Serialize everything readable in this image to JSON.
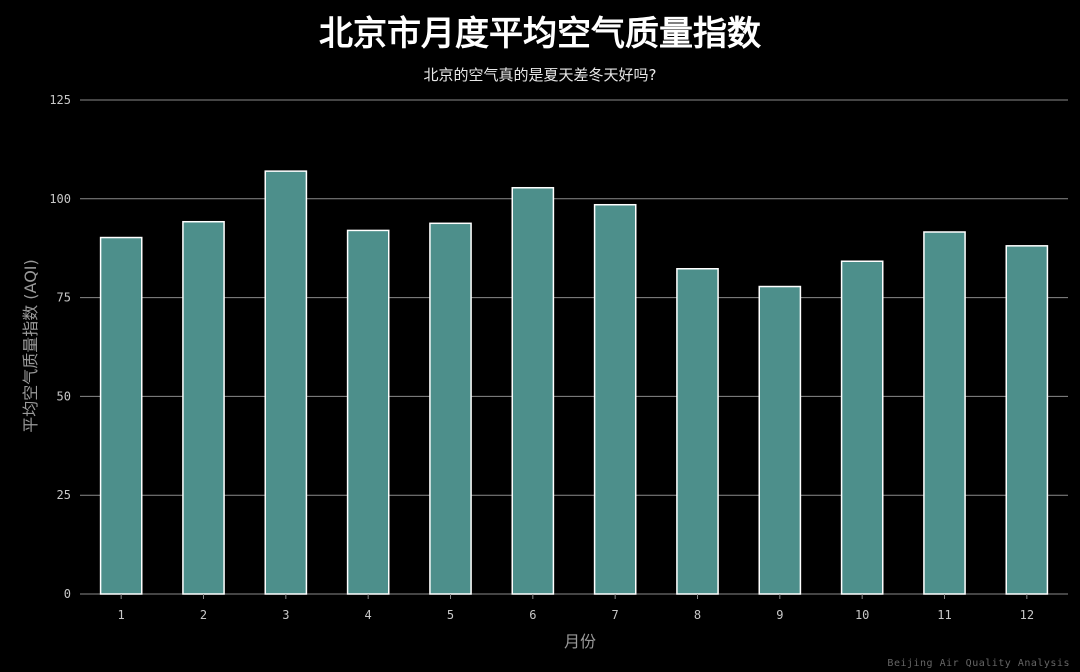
{
  "title": "北京市月度平均空气质量指数",
  "subtitle": "北京的空气真的是夏天差冬天好吗?",
  "watermark": "Beijing Air Quality Analysis",
  "colors": {
    "background": "#000000",
    "bar_fill": "#4d8f8b",
    "bar_stroke": "#ffffff",
    "grid": "#8a8a8a"
  },
  "chart_data": {
    "type": "bar",
    "categories": [
      "1",
      "2",
      "3",
      "4",
      "5",
      "6",
      "7",
      "8",
      "9",
      "10",
      "11",
      "12"
    ],
    "values": [
      90.2,
      94.2,
      107.0,
      92.0,
      93.8,
      102.8,
      98.5,
      82.3,
      77.8,
      84.2,
      91.6,
      88.1
    ],
    "title": "北京市月度平均空气质量指数",
    "subtitle": "北京的空气真的是夏天差冬天好吗?",
    "xlabel": "月份",
    "ylabel": "平均空气质量指数 (AQI)",
    "ylim": [
      0,
      125
    ],
    "yticks": [
      0,
      25,
      50,
      75,
      100,
      125
    ],
    "grid": "horizontal",
    "legend": "none"
  }
}
